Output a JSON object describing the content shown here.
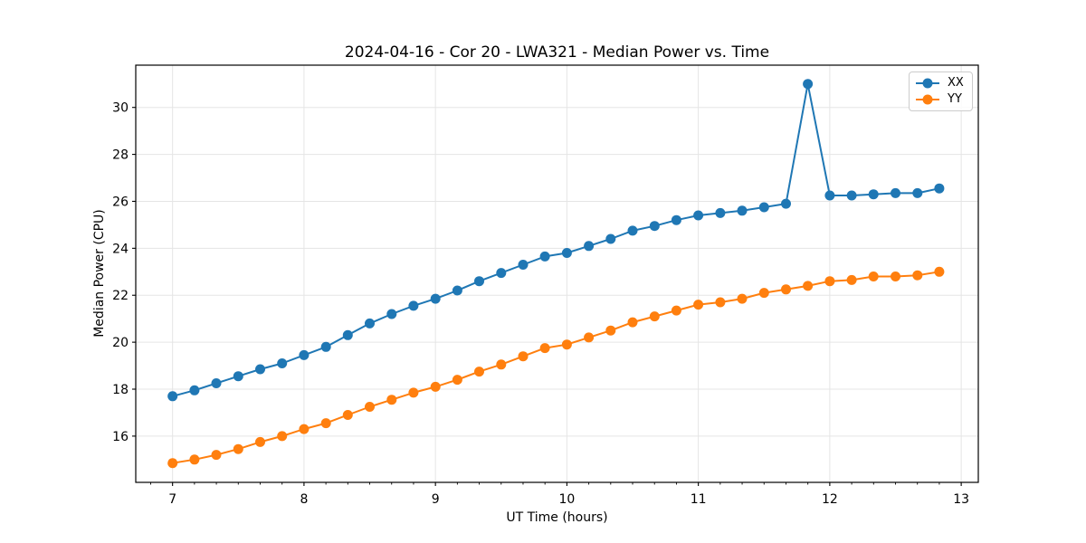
{
  "figure": {
    "background": "#ffffff"
  },
  "chart_data": {
    "type": "line",
    "title": "2024-04-16 - Cor 20 - LWA321 - Median Power vs. Time",
    "xlabel": "UT Time (hours)",
    "ylabel": "Median Power (CPU)",
    "xlim": [
      6.72,
      13.13
    ],
    "ylim": [
      14.03,
      31.8
    ],
    "x_ticks": [
      7,
      8,
      9,
      10,
      11,
      12,
      13
    ],
    "y_ticks": [
      16,
      18,
      20,
      22,
      24,
      26,
      28,
      30
    ],
    "x_minor_tick_step": 0.1667,
    "grid": true,
    "grid_color": "#e5e5e5",
    "axis_color": "#000000",
    "legend_position": "upper right",
    "marker": "circle",
    "x": [
      7.0,
      7.167,
      7.333,
      7.5,
      7.667,
      7.833,
      8.0,
      8.167,
      8.333,
      8.5,
      8.667,
      8.833,
      9.0,
      9.167,
      9.333,
      9.5,
      9.667,
      9.833,
      10.0,
      10.167,
      10.333,
      10.5,
      10.667,
      10.833,
      11.0,
      11.167,
      11.333,
      11.5,
      11.667,
      11.833,
      12.0,
      12.167,
      12.333,
      12.5,
      12.667,
      12.833
    ],
    "series": [
      {
        "name": "XX",
        "color": "#1f77b4",
        "values": [
          17.7,
          17.95,
          18.25,
          18.55,
          18.85,
          19.1,
          19.45,
          19.8,
          20.3,
          20.8,
          21.2,
          21.55,
          21.85,
          22.2,
          22.6,
          22.95,
          23.3,
          23.65,
          23.8,
          24.1,
          24.4,
          24.75,
          24.95,
          25.2,
          25.4,
          25.5,
          25.6,
          25.75,
          25.9,
          31.0,
          26.25,
          26.25,
          26.3,
          26.35,
          26.35,
          26.55
        ]
      },
      {
        "name": "YY",
        "color": "#ff7f0e",
        "values": [
          14.85,
          15.0,
          15.2,
          15.45,
          15.75,
          16.0,
          16.3,
          16.55,
          16.9,
          17.25,
          17.55,
          17.85,
          18.1,
          18.4,
          18.75,
          19.05,
          19.4,
          19.75,
          19.9,
          20.2,
          20.5,
          20.85,
          21.1,
          21.35,
          21.6,
          21.7,
          21.85,
          22.1,
          22.25,
          22.4,
          22.6,
          22.65,
          22.8,
          22.8,
          22.85,
          23.0
        ]
      }
    ]
  }
}
